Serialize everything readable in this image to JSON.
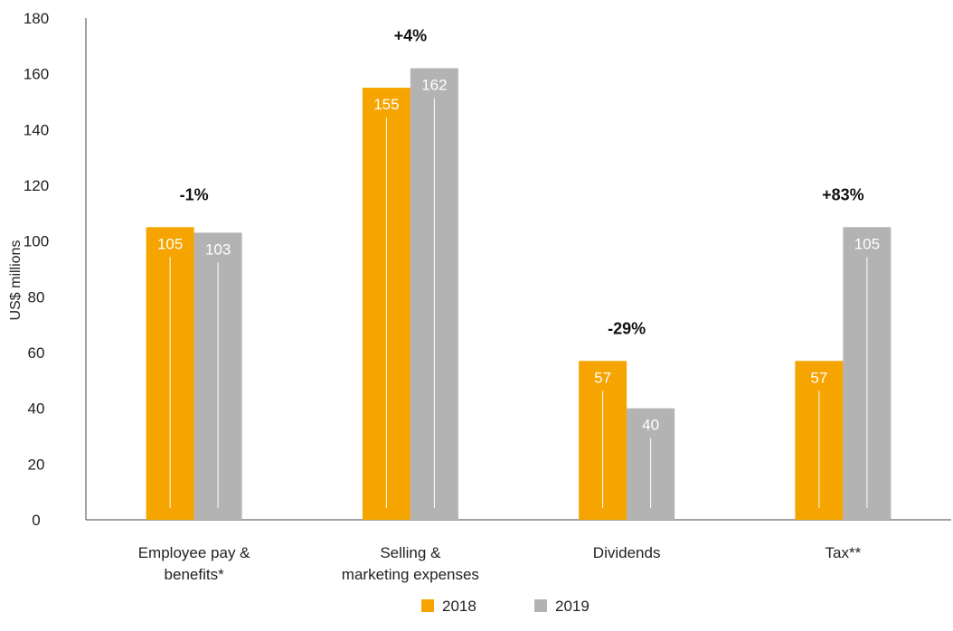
{
  "chart_data": {
    "type": "bar",
    "title": "",
    "xlabel": "",
    "ylabel": "US$ millions",
    "ylim": [
      0,
      180
    ],
    "yticks": [
      0,
      20,
      40,
      60,
      80,
      100,
      120,
      140,
      160,
      180
    ],
    "grid": false,
    "legend_position": "bottom-center",
    "categories": [
      [
        "Employee pay &",
        "benefits*"
      ],
      [
        "Selling &",
        "marketing expenses"
      ],
      [
        "Dividends"
      ],
      [
        "Tax**"
      ]
    ],
    "series": [
      {
        "name": "2018",
        "color": "#F5A400",
        "values": [
          105,
          155,
          57,
          57
        ],
        "labels": [
          "105",
          "155",
          "57",
          "57"
        ]
      },
      {
        "name": "2019",
        "color": "#B3B3B3",
        "values": [
          103,
          162,
          40,
          105
        ],
        "labels": [
          "103",
          "162",
          "40",
          "105"
        ]
      }
    ],
    "annotations": [
      "-1%",
      "+4%",
      "-29%",
      "+83%"
    ]
  }
}
